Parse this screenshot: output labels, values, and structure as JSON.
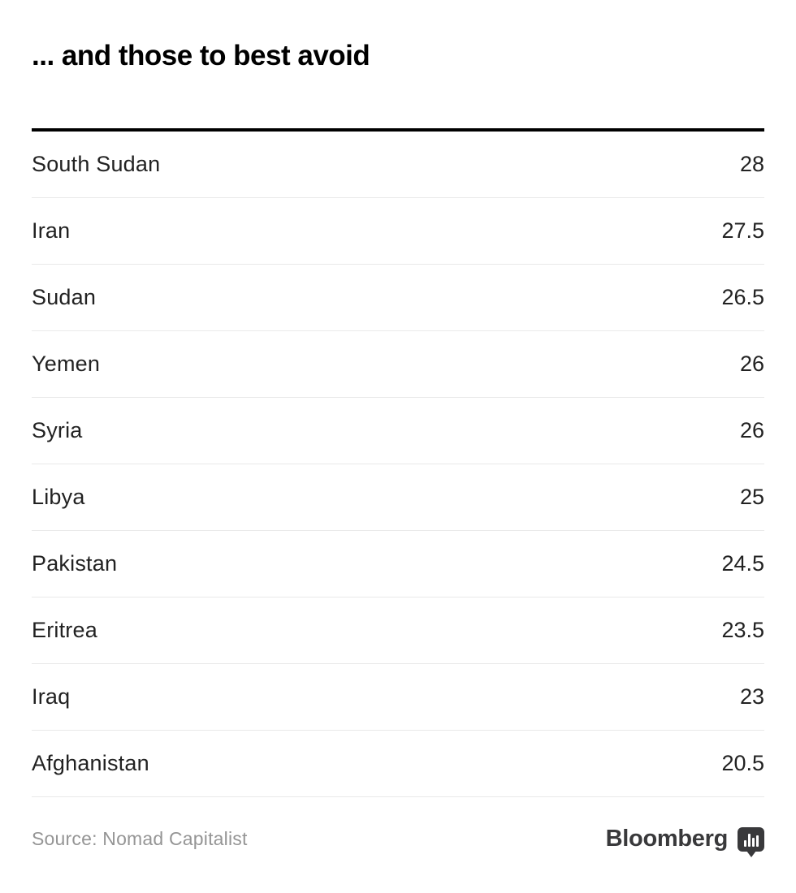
{
  "header": {
    "title": "... and those to best avoid"
  },
  "rows": [
    {
      "name": "South Sudan",
      "value": "28"
    },
    {
      "name": "Iran",
      "value": "27.5"
    },
    {
      "name": "Sudan",
      "value": "26.5"
    },
    {
      "name": "Yemen",
      "value": "26"
    },
    {
      "name": "Syria",
      "value": "26"
    },
    {
      "name": "Libya",
      "value": "25"
    },
    {
      "name": "Pakistan",
      "value": "24.5"
    },
    {
      "name": "Eritrea",
      "value": "23.5"
    },
    {
      "name": "Iraq",
      "value": "23"
    },
    {
      "name": "Afghanistan",
      "value": "20.5"
    }
  ],
  "footer": {
    "source_label": "Source: Nomad Capitalist",
    "brand_label": "Bloomberg",
    "brand_icon": "speech-bubble-bar-chart-icon"
  },
  "colors": {
    "title_text": "#000000",
    "row_text": "#222222",
    "top_rule": "#000000",
    "row_divider": "#e9e9e9",
    "source_text": "#959595",
    "brand_text": "#39393b",
    "background": "#ffffff"
  },
  "chart_data": {
    "type": "table",
    "title": "... and those to best avoid",
    "categories": [
      "South Sudan",
      "Iran",
      "Sudan",
      "Yemen",
      "Syria",
      "Libya",
      "Pakistan",
      "Eritrea",
      "Iraq",
      "Afghanistan"
    ],
    "values": [
      28,
      27.5,
      26.5,
      26,
      26,
      25,
      24.5,
      23.5,
      23,
      20.5
    ],
    "source": "Nomad Capitalist",
    "brand": "Bloomberg",
    "layout": "two-column ranked list, country left-aligned, score right-aligned, descending order"
  }
}
